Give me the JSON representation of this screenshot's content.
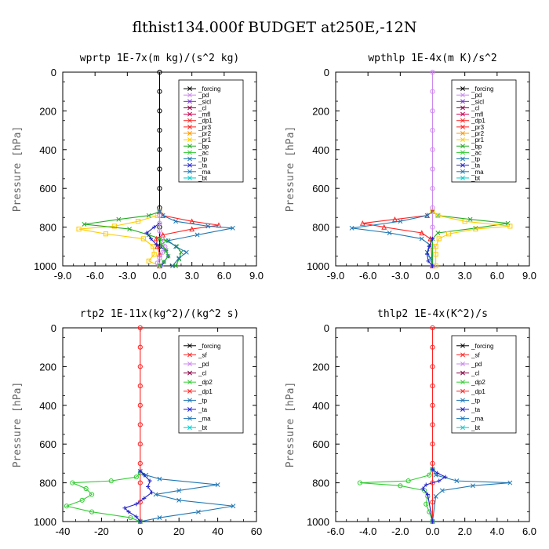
{
  "figure_title": "flthist134.000f  BUDGET at250E,-12N",
  "chart_data": [
    {
      "type": "line",
      "title": "wprtp  1E-7x(m kg)/(s^2 kg)",
      "ylabel": "Pressure [hPa]",
      "xlim": [
        -9,
        9
      ],
      "ylim": [
        1000,
        0
      ],
      "x_ticks": [
        "-9.0",
        "-6.0",
        "-3.0",
        "0.0",
        "3.0",
        "6.0",
        "9.0"
      ],
      "y_ticks": [
        "0",
        "200",
        "400",
        "600",
        "800",
        "1000"
      ],
      "legend": [
        "_forcing",
        "_pd",
        "_sicl",
        "_cl",
        "_mfl",
        "_dp1",
        "_pr3",
        "_pr2",
        "_pr1",
        "_bp",
        "_ac",
        "_tp",
        "_ta",
        "_ma",
        "_bt"
      ],
      "series": [
        {
          "name": "_forcing",
          "color": "#000000",
          "marker": "circle",
          "x": [
            0,
            0,
            0,
            0,
            0,
            0,
            0,
            0,
            0,
            0,
            0
          ],
          "y": [
            0,
            100,
            200,
            300,
            400,
            500,
            600,
            700,
            800,
            900,
            1000
          ]
        },
        {
          "name": "_pr1",
          "color": "#ffcc00",
          "marker": "square",
          "x": [
            0,
            -0.2,
            -2,
            -4.2,
            -7.5,
            -5,
            -1.5,
            -0.6,
            -0.5,
            -1,
            0
          ],
          "y": [
            720,
            740,
            770,
            795,
            810,
            835,
            860,
            900,
            940,
            975,
            1000
          ]
        },
        {
          "name": "_bp",
          "color": "#22aa22",
          "marker": "x",
          "x": [
            0,
            -1,
            -3.8,
            -7,
            -2.8,
            -1,
            0.6,
            1.6,
            2,
            1.8,
            1.5
          ],
          "y": [
            720,
            740,
            760,
            785,
            810,
            840,
            870,
            900,
            930,
            965,
            1000
          ]
        },
        {
          "name": "_dp1",
          "color": "#ff2222",
          "marker": "triangle",
          "x": [
            0,
            0.3,
            3,
            5.5,
            3,
            0.3,
            -0.3,
            -0.2,
            0,
            0
          ],
          "y": [
            720,
            740,
            770,
            790,
            810,
            840,
            860,
            900,
            940,
            1000
          ]
        },
        {
          "name": "_tp",
          "color": "#1f77b4",
          "marker": "x",
          "x": [
            0,
            0.3,
            1.5,
            4.5,
            6.8,
            3.5,
            0.8,
            1.5,
            2.5,
            1.8,
            1.2
          ],
          "y": [
            720,
            740,
            770,
            795,
            805,
            840,
            870,
            900,
            930,
            960,
            1000
          ]
        },
        {
          "name": "_ta",
          "color": "#2222cc",
          "marker": "plus",
          "x": [
            0,
            -0.5,
            -1.2,
            -0.8,
            -0.3,
            0.6,
            0.8,
            0.4,
            0.2
          ],
          "y": [
            780,
            800,
            830,
            860,
            890,
            920,
            950,
            980,
            1000
          ]
        },
        {
          "name": "_pd",
          "color": "#cc88ee",
          "marker": "circle",
          "x": [
            0,
            0,
            0,
            0.2,
            0.5,
            0.3,
            0,
            -0.2,
            0
          ],
          "y": [
            740,
            780,
            820,
            860,
            900,
            930,
            960,
            985,
            1000
          ]
        },
        {
          "name": "_ac",
          "color": "#22bb22",
          "marker": "x",
          "x": [
            0,
            0.2,
            0.6,
            0.8,
            0.4,
            0
          ],
          "y": [
            860,
            890,
            920,
            950,
            980,
            1000
          ]
        }
      ]
    },
    {
      "type": "line",
      "title": "wpthlp  1E-4x(m K)/s^2",
      "ylabel": "Pressure [hPa]",
      "xlim": [
        -9,
        9
      ],
      "ylim": [
        1000,
        0
      ],
      "x_ticks": [
        "-9.0",
        "-6.0",
        "-3.0",
        "0.0",
        "3.0",
        "6.0",
        "9.0"
      ],
      "y_ticks": [
        "0",
        "200",
        "400",
        "600",
        "800",
        "1000"
      ],
      "legend": [
        "_forcing",
        "_pd",
        "_sicl",
        "_cl",
        "_mfl",
        "_dp1",
        "_pr3",
        "_pr2",
        "_pr1",
        "_bp",
        "_ac",
        "_tp",
        "_ta",
        "_ma",
        "_bt"
      ],
      "series": [
        {
          "name": "_pd",
          "color": "#cc88ee",
          "marker": "circle",
          "x": [
            0,
            0,
            0,
            0,
            0,
            0,
            0,
            0,
            0,
            0,
            0
          ],
          "y": [
            0,
            100,
            200,
            300,
            400,
            500,
            600,
            700,
            800,
            900,
            1000
          ]
        },
        {
          "name": "_dp1",
          "color": "#ff2222",
          "marker": "triangle",
          "x": [
            0,
            -0.5,
            -3.5,
            -6.5,
            -4.5,
            -1,
            -0.2,
            0
          ],
          "y": [
            720,
            740,
            760,
            780,
            800,
            830,
            860,
            1000
          ]
        },
        {
          "name": "_bp",
          "color": "#22aa22",
          "marker": "x",
          "x": [
            0,
            0.5,
            3.5,
            7,
            4,
            0.5,
            0,
            0
          ],
          "y": [
            720,
            740,
            760,
            780,
            805,
            830,
            860,
            1000
          ]
        },
        {
          "name": "_tp",
          "color": "#1f77b4",
          "marker": "x",
          "x": [
            0,
            -0.5,
            -3,
            -7.5,
            -4,
            -1,
            -0.3,
            -0.5,
            -0.2,
            0
          ],
          "y": [
            720,
            740,
            770,
            805,
            830,
            860,
            890,
            930,
            960,
            1000
          ]
        },
        {
          "name": "_pr1",
          "color": "#ffcc00",
          "marker": "square",
          "x": [
            0,
            0.5,
            3,
            7.2,
            4,
            1.5,
            0.6,
            0.3,
            0.3,
            0.3
          ],
          "y": [
            720,
            740,
            770,
            795,
            810,
            835,
            860,
            900,
            940,
            1000
          ]
        },
        {
          "name": "_ta",
          "color": "#2222cc",
          "marker": "plus",
          "x": [
            0,
            -0.3,
            -0.5,
            -0.4,
            0
          ],
          "y": [
            860,
            900,
            940,
            975,
            1000
          ]
        }
      ]
    },
    {
      "type": "line",
      "title": "rtp2  1E-11x(kg^2)/(kg^2 s)",
      "ylabel": "Pressure [hPa]",
      "xlim": [
        -40,
        60
      ],
      "ylim": [
        1000,
        0
      ],
      "x_ticks": [
        "-40",
        "-20",
        "0",
        "20",
        "40",
        "60"
      ],
      "y_ticks": [
        "0",
        "200",
        "400",
        "600",
        "800",
        "1000"
      ],
      "legend": [
        "_forcing",
        "_sf",
        "_pd",
        "_cl",
        "_dp2",
        "_dp1",
        "_tp",
        "_ta",
        "_ma",
        "_bt"
      ],
      "series": [
        {
          "name": "_forcing",
          "color": "#ff2222",
          "marker": "circle",
          "x": [
            0,
            0,
            0,
            0,
            0,
            0,
            0,
            0,
            0,
            0,
            0
          ],
          "y": [
            0,
            100,
            200,
            300,
            400,
            500,
            600,
            700,
            800,
            900,
            1000
          ]
        },
        {
          "name": "_dp1",
          "color": "#33cc33",
          "marker": "circle",
          "x": [
            0,
            -2,
            -15,
            -35,
            -28,
            -25,
            -30,
            -38,
            -25,
            -5,
            0
          ],
          "y": [
            750,
            770,
            790,
            800,
            830,
            860,
            890,
            920,
            950,
            980,
            1000
          ]
        },
        {
          "name": "_tp",
          "color": "#1f77b4",
          "marker": "x",
          "x": [
            0,
            3,
            10,
            40,
            20,
            8,
            20,
            48,
            30,
            10,
            0
          ],
          "y": [
            740,
            760,
            780,
            810,
            840,
            860,
            890,
            920,
            950,
            980,
            1000
          ]
        },
        {
          "name": "_ta",
          "color": "#2222cc",
          "marker": "plus",
          "x": [
            0,
            2,
            5,
            4,
            6,
            2,
            -2,
            -8,
            -6,
            -2,
            0
          ],
          "y": [
            740,
            760,
            790,
            820,
            850,
            880,
            910,
            930,
            950,
            975,
            1000
          ]
        }
      ]
    },
    {
      "type": "line",
      "title": "thlp2  1E-4x(K^2)/s",
      "ylabel": "Pressure [hPa]",
      "xlim": [
        -6,
        6
      ],
      "ylim": [
        1000,
        0
      ],
      "x_ticks": [
        "-6.0",
        "-4.0",
        "-2.0",
        "0.0",
        "2.0",
        "4.0",
        "6.0"
      ],
      "y_ticks": [
        "0",
        "200",
        "400",
        "600",
        "800",
        "1000"
      ],
      "legend": [
        "_forcing",
        "_sf",
        "_pd",
        "_cl",
        "_dp2",
        "_dp1",
        "_tp",
        "_ta",
        "_ma",
        "_bt"
      ],
      "series": [
        {
          "name": "_forcing",
          "color": "#ff2222",
          "marker": "circle",
          "x": [
            0,
            0,
            0,
            0,
            0,
            0,
            0,
            0,
            0,
            0,
            0
          ],
          "y": [
            0,
            100,
            200,
            300,
            400,
            500,
            600,
            700,
            800,
            900,
            1000
          ]
        },
        {
          "name": "_dp1",
          "color": "#33cc33",
          "marker": "circle",
          "x": [
            0,
            -0.2,
            -1.5,
            -4.5,
            -2,
            -0.5,
            -0.3,
            -0.4,
            -0.2,
            0
          ],
          "y": [
            730,
            760,
            790,
            800,
            815,
            840,
            870,
            910,
            950,
            1000
          ]
        },
        {
          "name": "_tp",
          "color": "#1f77b4",
          "marker": "x",
          "x": [
            0,
            0.2,
            1.5,
            4.8,
            2.5,
            0.6,
            0.2,
            0
          ],
          "y": [
            730,
            760,
            790,
            800,
            815,
            840,
            870,
            1000
          ]
        },
        {
          "name": "_ta",
          "color": "#2222cc",
          "marker": "plus",
          "x": [
            0,
            0.3,
            0.8,
            0.4,
            -0.4,
            -0.6,
            -0.3,
            0
          ],
          "y": [
            730,
            750,
            770,
            790,
            810,
            830,
            860,
            1000
          ]
        }
      ]
    }
  ]
}
